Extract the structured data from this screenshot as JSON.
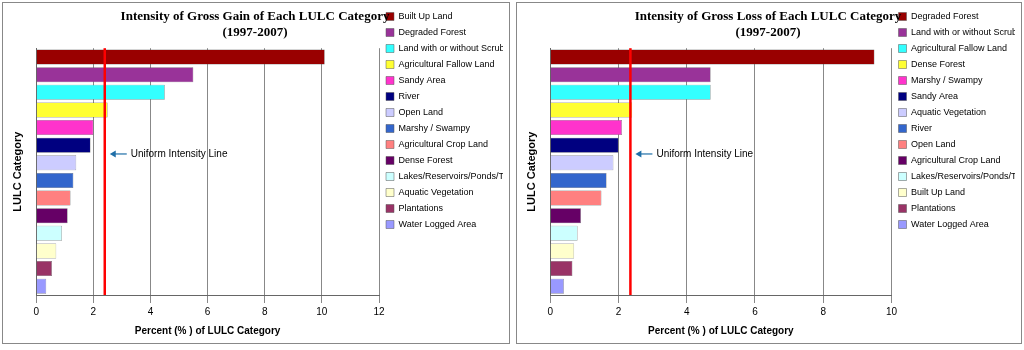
{
  "chart_data": [
    {
      "type": "bar",
      "orientation": "horizontal",
      "title": "Intensity of Gross Gain of Each LULC Category",
      "subtitle": "(1997-2007)",
      "x_label": "Percent (% ) of LULC Category",
      "y_label": "LULC Category",
      "categories": [
        "Built Up Land",
        "Degraded Forest",
        "Land with or without Scrub",
        "Agricultural Fallow Land",
        "Sandy Area",
        "River",
        "Open Land",
        "Marshy / Swampy",
        "Agricultural Crop Land",
        "Dense Forest",
        "Lakes/Reservoirs/Ponds/Tanks",
        "Aquatic Vegetation",
        "Plantations",
        "Water Logged Area"
      ],
      "values": [
        10.1,
        5.5,
        4.5,
        2.5,
        2.0,
        1.9,
        1.4,
        1.3,
        1.2,
        1.1,
        0.9,
        0.7,
        0.55,
        0.35
      ],
      "colors": [
        "#990000",
        "#993399",
        "#33FFFF",
        "#FFFF33",
        "#FF33CC",
        "#000080",
        "#CCCCFF",
        "#3366CC",
        "#FF8080",
        "#660066",
        "#CCFFFF",
        "#FFFFCC",
        "#993366",
        "#9999FF"
      ],
      "xlim": [
        0,
        12
      ],
      "xticks": [
        0,
        2,
        4,
        6,
        8,
        10,
        12
      ],
      "uniform_intensity": {
        "value": 2.4,
        "label": "Uniform Intensity Line"
      },
      "grid": true,
      "legend": "right",
      "tick_labels": "x"
    },
    {
      "type": "bar",
      "orientation": "horizontal",
      "title": "Intensity of Gross Loss of Each LULC Category",
      "subtitle": "(1997-2007)",
      "x_label": "Percent (% ) of LULC Category",
      "y_label": "LULC Category",
      "categories": [
        "Degraded Forest",
        "Land with or without Scrub",
        "Agricultural Fallow Land",
        "Dense Forest",
        "Marshy / Swampy",
        "Sandy Area",
        "Aquatic Vegetation",
        "River",
        "Open Land",
        "Agricultural Crop Land",
        "Lakes/Reservoirs/Ponds/Tanks",
        "Built Up Land",
        "Plantations",
        "Water Logged Area"
      ],
      "values": [
        9.5,
        4.7,
        4.7,
        2.4,
        2.1,
        2.0,
        1.85,
        1.65,
        1.5,
        0.9,
        0.8,
        0.7,
        0.65,
        0.4
      ],
      "colors": [
        "#990000",
        "#993399",
        "#33FFFF",
        "#FFFF33",
        "#FF33CC",
        "#000080",
        "#CCCCFF",
        "#3366CC",
        "#FF8080",
        "#660066",
        "#CCFFFF",
        "#FFFFCC",
        "#993366",
        "#9999FF"
      ],
      "xlim": [
        0,
        10
      ],
      "xticks": [
        0,
        2,
        4,
        6,
        8,
        10
      ],
      "uniform_intensity": {
        "value": 2.35,
        "label": "Uniform Intensity Line"
      },
      "grid": true,
      "legend": "right",
      "tick_labels": "x"
    }
  ]
}
